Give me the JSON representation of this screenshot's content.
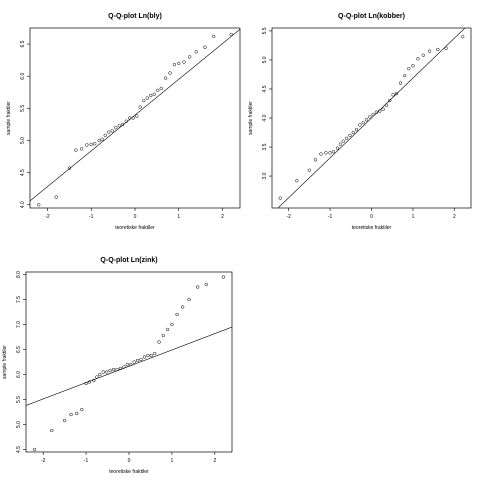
{
  "chart_data": [
    {
      "type": "scatter",
      "title": "Q-Q-plot Ln(bly)",
      "xlabel": "teoretiske fraktiler",
      "ylabel": "sample fraktiler",
      "xlim": [
        -2.4,
        2.4
      ],
      "ylim": [
        3.95,
        6.75
      ],
      "xticks": [
        -2,
        -1,
        0,
        1,
        2
      ],
      "yticks": [
        4.0,
        4.5,
        5.0,
        5.5,
        6.0,
        6.5
      ],
      "ytick_labels": [
        "4.0",
        "4.5",
        "5.0",
        "5.5",
        "6.0",
        "6.5"
      ],
      "line": {
        "x": [
          -2.4,
          2.4
        ],
        "y": [
          4.06,
          6.73
        ]
      },
      "points": [
        [
          -2.2,
          4.0
        ],
        [
          -1.8,
          4.12
        ],
        [
          -1.5,
          4.57
        ],
        [
          -1.35,
          4.85
        ],
        [
          -1.22,
          4.87
        ],
        [
          -1.1,
          4.93
        ],
        [
          -1.0,
          4.94
        ],
        [
          -0.92,
          4.95
        ],
        [
          -0.82,
          5.0
        ],
        [
          -0.75,
          5.02
        ],
        [
          -0.68,
          5.08
        ],
        [
          -0.6,
          5.13
        ],
        [
          -0.52,
          5.15
        ],
        [
          -0.44,
          5.2
        ],
        [
          -0.36,
          5.23
        ],
        [
          -0.28,
          5.25
        ],
        [
          -0.2,
          5.3
        ],
        [
          -0.12,
          5.35
        ],
        [
          -0.04,
          5.35
        ],
        [
          0.04,
          5.38
        ],
        [
          0.12,
          5.52
        ],
        [
          0.2,
          5.62
        ],
        [
          0.28,
          5.66
        ],
        [
          0.36,
          5.7
        ],
        [
          0.44,
          5.72
        ],
        [
          0.52,
          5.78
        ],
        [
          0.6,
          5.81
        ],
        [
          0.7,
          5.97
        ],
        [
          0.8,
          6.05
        ],
        [
          0.9,
          6.18
        ],
        [
          1.0,
          6.2
        ],
        [
          1.12,
          6.22
        ],
        [
          1.25,
          6.3
        ],
        [
          1.4,
          6.38
        ],
        [
          1.6,
          6.45
        ],
        [
          1.8,
          6.62
        ],
        [
          2.2,
          6.65
        ]
      ]
    },
    {
      "type": "scatter",
      "title": "Q-Q-plot Ln(kobber)",
      "xlabel": "teoretiske fraktiler",
      "ylabel": "sample fraktiler",
      "xlim": [
        -2.4,
        2.4
      ],
      "ylim": [
        2.45,
        5.55
      ],
      "xticks": [
        -2,
        -1,
        0,
        1,
        2
      ],
      "yticks": [
        3.0,
        3.5,
        4.0,
        4.5,
        5.0,
        5.5
      ],
      "ytick_labels": [
        "3.0",
        "3.5",
        "4.0",
        "4.5",
        "5.0",
        "5.5"
      ],
      "line": {
        "x": [
          -2.4,
          2.4
        ],
        "y": [
          2.35,
          5.65
        ]
      },
      "points": [
        [
          -2.2,
          2.62
        ],
        [
          -1.8,
          2.92
        ],
        [
          -1.5,
          3.1
        ],
        [
          -1.35,
          3.28
        ],
        [
          -1.22,
          3.38
        ],
        [
          -1.1,
          3.4
        ],
        [
          -1.0,
          3.4
        ],
        [
          -0.92,
          3.42
        ],
        [
          -0.82,
          3.48
        ],
        [
          -0.75,
          3.55
        ],
        [
          -0.68,
          3.6
        ],
        [
          -0.6,
          3.65
        ],
        [
          -0.52,
          3.7
        ],
        [
          -0.44,
          3.75
        ],
        [
          -0.36,
          3.8
        ],
        [
          -0.28,
          3.88
        ],
        [
          -0.2,
          3.92
        ],
        [
          -0.12,
          3.97
        ],
        [
          -0.04,
          4.02
        ],
        [
          0.04,
          4.06
        ],
        [
          0.12,
          4.1
        ],
        [
          0.2,
          4.12
        ],
        [
          0.28,
          4.15
        ],
        [
          0.36,
          4.22
        ],
        [
          0.44,
          4.3
        ],
        [
          0.52,
          4.4
        ],
        [
          0.6,
          4.42
        ],
        [
          0.7,
          4.6
        ],
        [
          0.8,
          4.73
        ],
        [
          0.9,
          4.85
        ],
        [
          1.0,
          4.9
        ],
        [
          1.12,
          5.02
        ],
        [
          1.25,
          5.08
        ],
        [
          1.4,
          5.15
        ],
        [
          1.6,
          5.18
        ],
        [
          1.8,
          5.2
        ],
        [
          2.2,
          5.4
        ]
      ]
    },
    {
      "type": "scatter",
      "title": "Q-Q-plot Ln(zink)",
      "xlabel": "teoretiske fraktiler",
      "ylabel": "sample fraktiler",
      "xlim": [
        -2.4,
        2.4
      ],
      "ylim": [
        4.45,
        8.05
      ],
      "xticks": [
        -2,
        -1,
        0,
        1,
        2
      ],
      "yticks": [
        4.5,
        5.0,
        5.5,
        6.0,
        6.5,
        7.0,
        7.5,
        8.0
      ],
      "ytick_labels": [
        "4.5",
        "5.0",
        "5.5",
        "6.0",
        "6.5",
        "7.0",
        "7.5",
        "8.0"
      ],
      "line": {
        "x": [
          -2.4,
          2.4
        ],
        "y": [
          5.38,
          6.95
        ]
      },
      "points": [
        [
          -2.2,
          4.5
        ],
        [
          -1.8,
          4.88
        ],
        [
          -1.5,
          5.08
        ],
        [
          -1.35,
          5.2
        ],
        [
          -1.22,
          5.22
        ],
        [
          -1.1,
          5.3
        ],
        [
          -1.0,
          5.82
        ],
        [
          -0.92,
          5.85
        ],
        [
          -0.82,
          5.88
        ],
        [
          -0.75,
          5.95
        ],
        [
          -0.68,
          6.0
        ],
        [
          -0.6,
          6.05
        ],
        [
          -0.52,
          6.05
        ],
        [
          -0.44,
          6.08
        ],
        [
          -0.36,
          6.1
        ],
        [
          -0.28,
          6.1
        ],
        [
          -0.2,
          6.12
        ],
        [
          -0.12,
          6.15
        ],
        [
          -0.04,
          6.2
        ],
        [
          0.04,
          6.2
        ],
        [
          0.12,
          6.25
        ],
        [
          0.2,
          6.28
        ],
        [
          0.28,
          6.3
        ],
        [
          0.36,
          6.35
        ],
        [
          0.44,
          6.38
        ],
        [
          0.52,
          6.38
        ],
        [
          0.6,
          6.42
        ],
        [
          0.7,
          6.65
        ],
        [
          0.8,
          6.78
        ],
        [
          0.9,
          6.9
        ],
        [
          1.0,
          7.0
        ],
        [
          1.12,
          7.2
        ],
        [
          1.25,
          7.35
        ],
        [
          1.4,
          7.5
        ],
        [
          1.6,
          7.75
        ],
        [
          1.8,
          7.8
        ],
        [
          2.2,
          7.95
        ]
      ]
    }
  ]
}
